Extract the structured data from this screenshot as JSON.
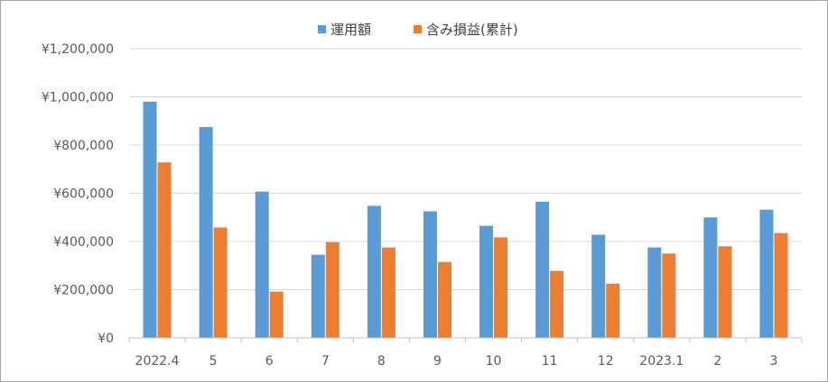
{
  "chart_data": {
    "type": "bar",
    "title": "",
    "xlabel": "",
    "ylabel": "",
    "categories": [
      "2022.4",
      "5",
      "6",
      "7",
      "8",
      "9",
      "10",
      "11",
      "12",
      "2023.1",
      "2",
      "3"
    ],
    "series": [
      {
        "name": "運用額",
        "color": "#5b9bd5",
        "values": [
          980000,
          875000,
          607000,
          345000,
          548000,
          525000,
          465000,
          565000,
          428000,
          375000,
          500000,
          532000
        ]
      },
      {
        "name": "含み損益(累計)",
        "color": "#ed7d31",
        "values": [
          728000,
          458000,
          192000,
          397000,
          375000,
          315000,
          417000,
          278000,
          225000,
          350000,
          380000,
          435000
        ]
      }
    ],
    "ylim": [
      0,
      1200000
    ],
    "yticks": [
      "¥0",
      "¥200,000",
      "¥400,000",
      "¥600,000",
      "¥800,000",
      "¥1,000,000",
      "¥1,200,000"
    ],
    "grid": true,
    "legend": "top-center"
  }
}
